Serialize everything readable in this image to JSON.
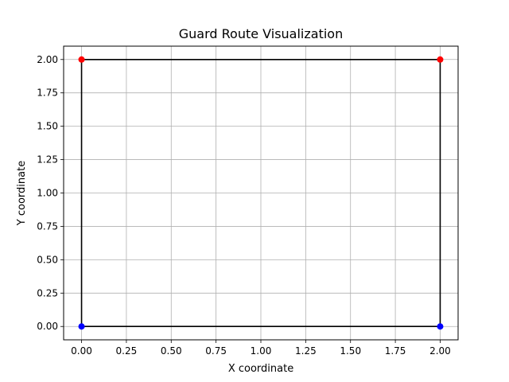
{
  "chart_data": {
    "type": "scatter",
    "title": "Guard Route Visualization",
    "xlabel": "X coordinate",
    "ylabel": "Y coordinate",
    "xlim": [
      -0.1,
      2.1
    ],
    "ylim": [
      -0.1,
      2.1
    ],
    "grid": true,
    "x_ticks": [
      "0.00",
      "0.25",
      "0.50",
      "0.75",
      "1.00",
      "1.25",
      "1.50",
      "1.75",
      "2.00"
    ],
    "y_ticks": [
      "0.00",
      "0.25",
      "0.50",
      "0.75",
      "1.00",
      "1.25",
      "1.50",
      "1.75",
      "2.00"
    ],
    "route": {
      "color": "#000000",
      "points": [
        [
          0,
          0
        ],
        [
          2,
          0
        ],
        [
          2,
          2
        ],
        [
          0,
          2
        ],
        [
          0,
          0
        ]
      ]
    },
    "series": [
      {
        "color": "#0000ff",
        "points": [
          [
            0,
            0
          ],
          [
            2,
            0
          ]
        ]
      },
      {
        "color": "#ff0000",
        "points": [
          [
            0,
            2
          ],
          [
            2,
            2
          ]
        ]
      }
    ]
  }
}
